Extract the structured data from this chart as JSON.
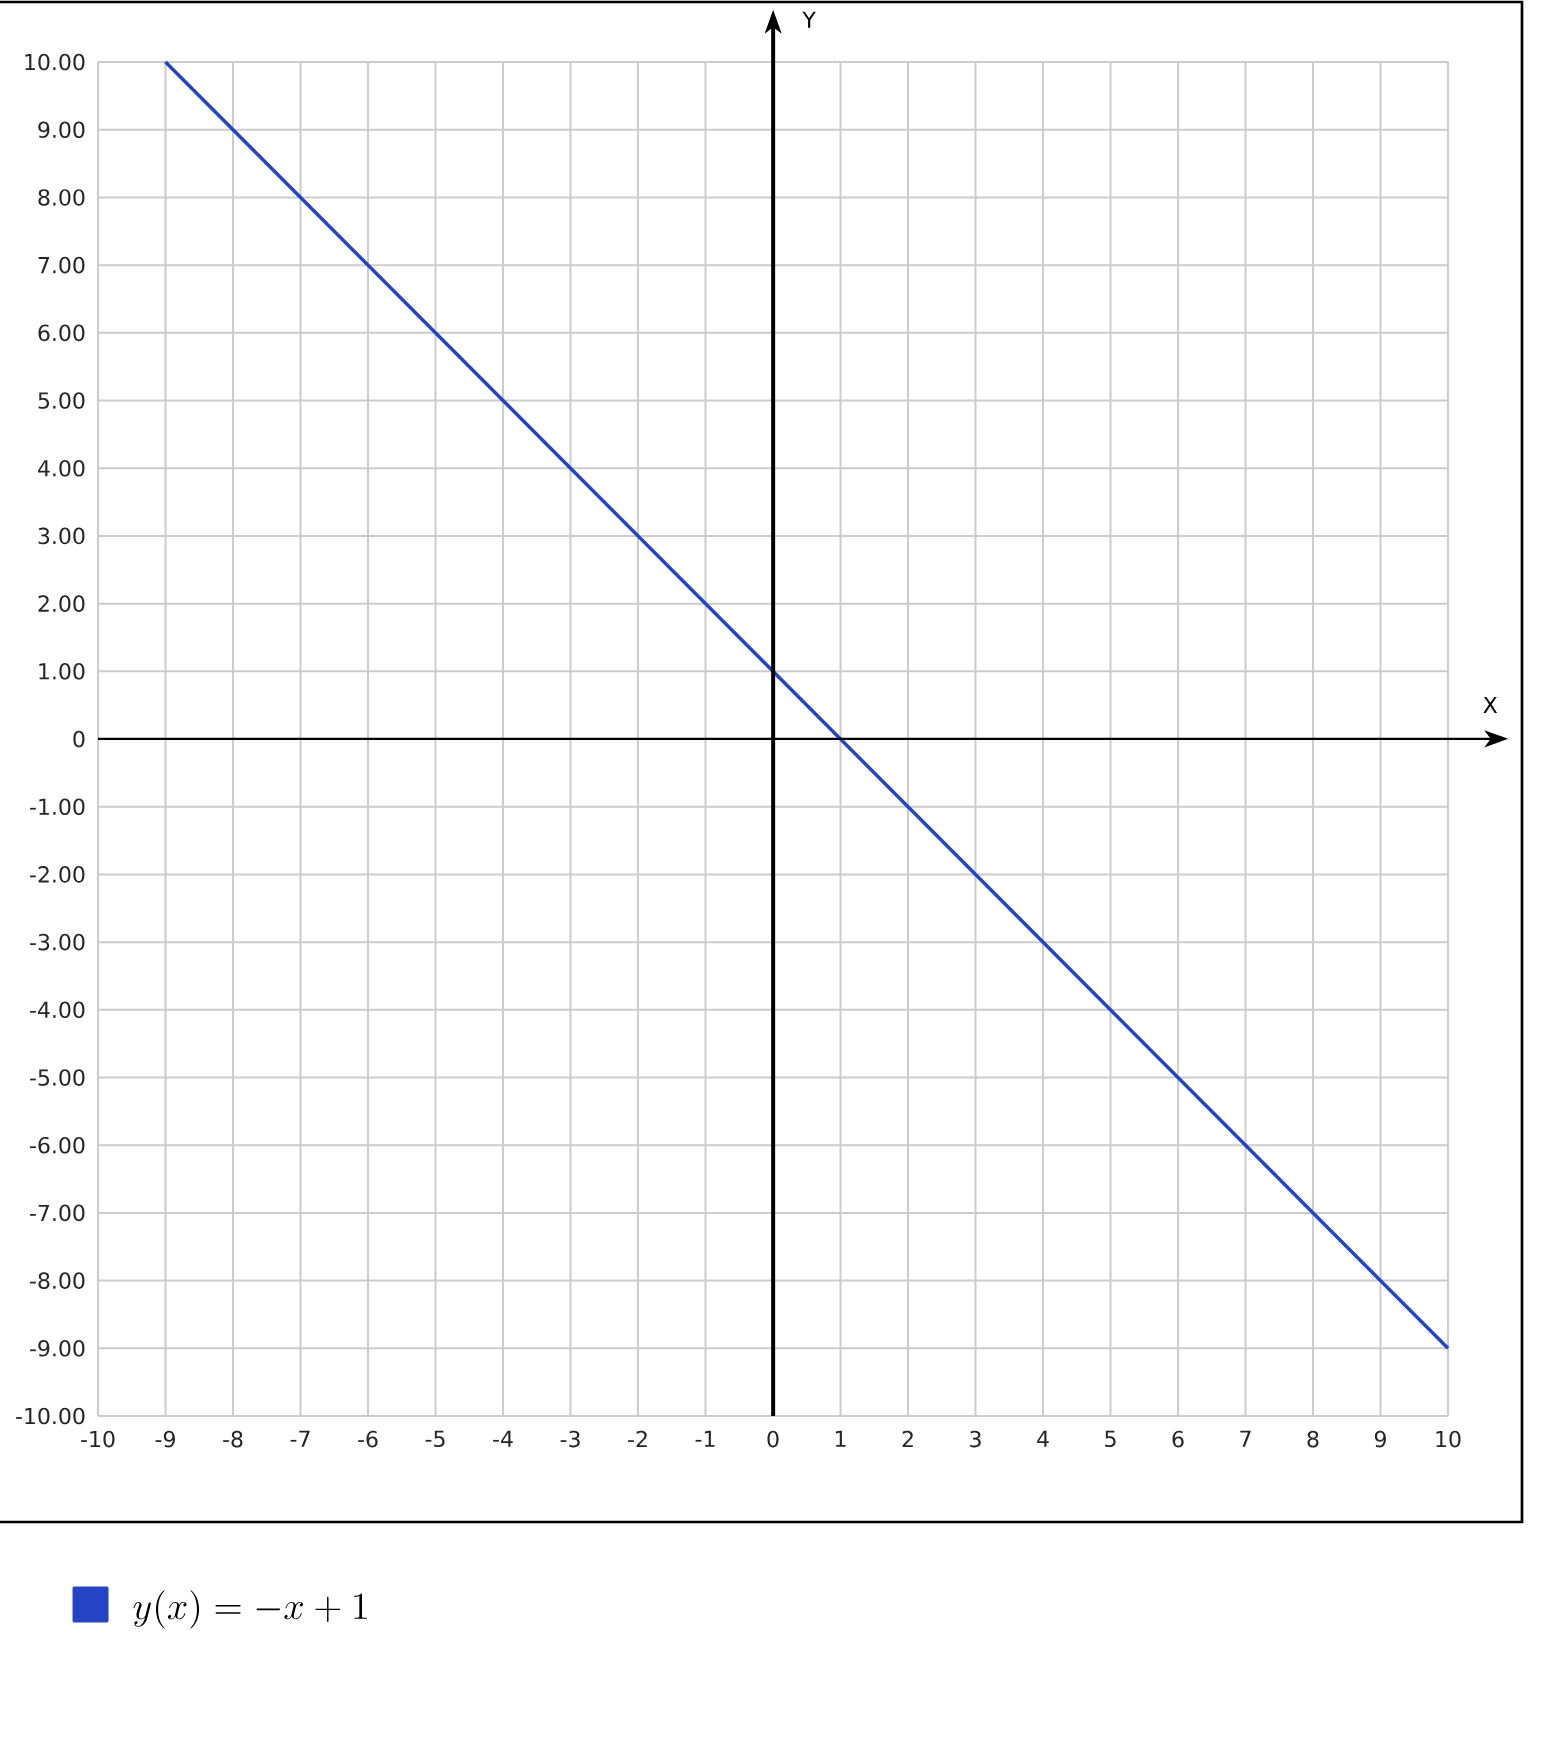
{
  "chart_data": {
    "type": "line",
    "xlabel": "X",
    "ylabel": "Y",
    "xlim": [
      -10,
      10
    ],
    "ylim": [
      -10,
      10
    ],
    "xticks": [
      -10,
      -9,
      -8,
      -7,
      -6,
      -5,
      -4,
      -3,
      -2,
      -1,
      0,
      1,
      2,
      3,
      4,
      5,
      6,
      7,
      8,
      9,
      10
    ],
    "yticks": [
      {
        "value": -10,
        "label": "-10.00"
      },
      {
        "value": -9,
        "label": "-9.00"
      },
      {
        "value": -8,
        "label": "-8.00"
      },
      {
        "value": -7,
        "label": "-7.00"
      },
      {
        "value": -6,
        "label": "-6.00"
      },
      {
        "value": -5,
        "label": "-5.00"
      },
      {
        "value": -4,
        "label": "-4.00"
      },
      {
        "value": -3,
        "label": "-3.00"
      },
      {
        "value": -2,
        "label": "-2.00"
      },
      {
        "value": -1,
        "label": "-1.00"
      },
      0,
      {
        "value": 1,
        "label": "1.00"
      },
      {
        "value": 2,
        "label": "2.00"
      },
      {
        "value": 3,
        "label": "3.00"
      },
      {
        "value": 4,
        "label": "4.00"
      },
      {
        "value": 5,
        "label": "5.00"
      },
      {
        "value": 6,
        "label": "6.00"
      },
      {
        "value": 7,
        "label": "7.00"
      },
      {
        "value": 8,
        "label": "8.00"
      },
      {
        "value": 9,
        "label": "9.00"
      },
      {
        "value": 10,
        "label": "10.00"
      }
    ],
    "grid": true,
    "legend": "bottom",
    "series": [
      {
        "name": "y(x) = -x + 1",
        "color": "#2444c4",
        "x": [
          -9,
          10
        ],
        "values": [
          10,
          -9
        ]
      }
    ]
  }
}
